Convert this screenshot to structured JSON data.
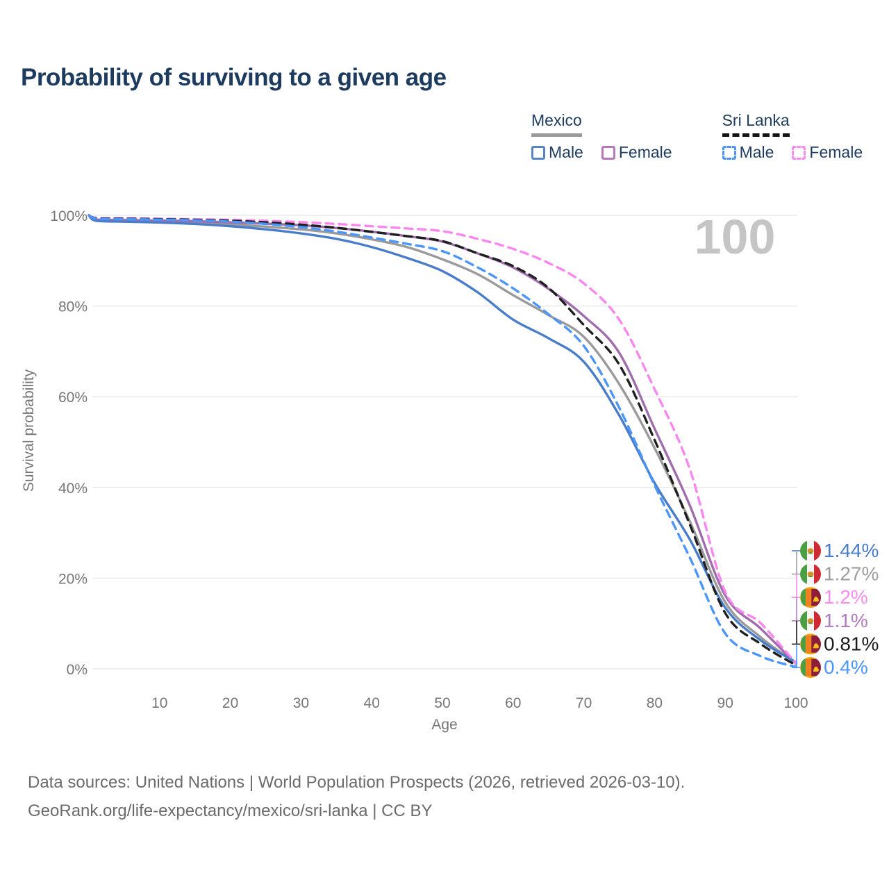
{
  "page": {
    "title": "Probability of surviving to a given age"
  },
  "legend": {
    "groups": [
      {
        "label": "Mexico",
        "underline_style": "solid",
        "underline_color": "#9a9a9a",
        "items": [
          {
            "label": "Male",
            "box_color": "#5585c8",
            "box_style": "solid"
          },
          {
            "label": "Female",
            "box_color": "#b878b8",
            "box_style": "solid"
          }
        ]
      },
      {
        "label": "Sri Lanka",
        "underline_style": "dashed",
        "underline_color": "#141414",
        "items": [
          {
            "label": "Male",
            "box_color": "#4d94fa",
            "box_style": "dashed"
          },
          {
            "label": "Female",
            "box_color": "#fb8bf0",
            "box_style": "dashed"
          }
        ]
      }
    ]
  },
  "watermark_label": "100",
  "chart_data": {
    "type": "line",
    "title": "Probability of surviving to a given age",
    "xlabel": "Age",
    "ylabel": "Survival probability",
    "grid": true,
    "legend_position": "top-right",
    "x_axis": {
      "min": 0,
      "max": 100,
      "ticks": [
        10,
        20,
        30,
        40,
        50,
        60,
        70,
        80,
        90,
        100
      ]
    },
    "y_axis": {
      "min": 0,
      "max": 100,
      "ticks_percent": [
        0,
        20,
        40,
        60,
        80,
        100
      ],
      "tick_labels": [
        "0%",
        "20%",
        "40%",
        "60%",
        "80%",
        "100%"
      ]
    },
    "ages": [
      0,
      1,
      5,
      10,
      15,
      20,
      25,
      30,
      35,
      40,
      45,
      50,
      55,
      60,
      65,
      70,
      75,
      80,
      85,
      90,
      95,
      100
    ],
    "series": [
      {
        "id": "mexico-both",
        "country": "Mexico",
        "sex": "Both",
        "style": "solid",
        "color": "#9a9a9a",
        "values": [
          100,
          98.95,
          98.8,
          98.6,
          98.4,
          98.0,
          97.5,
          96.9,
          96.0,
          94.7,
          93.0,
          90.3,
          87.0,
          82.4,
          78.0,
          73.2,
          62.8,
          48.7,
          32.5,
          14.7,
          7.0,
          1.27
        ],
        "end_label": "1.27%"
      },
      {
        "id": "mexico-female",
        "country": "Mexico",
        "sex": "Female",
        "style": "solid",
        "color": "#a06dac",
        "values": [
          100,
          99.1,
          98.95,
          98.85,
          98.7,
          98.45,
          98.15,
          97.8,
          97.2,
          96.4,
          95.4,
          94.2,
          91.6,
          88.5,
          83.8,
          77.8,
          69.7,
          53.0,
          36.0,
          16.2,
          8.9,
          1.1
        ],
        "end_label": "1.1%"
      },
      {
        "id": "mexico-male",
        "country": "Mexico",
        "sex": "Male",
        "style": "solid",
        "color": "#4a7dc9",
        "values": [
          100,
          98.8,
          98.6,
          98.4,
          98.1,
          97.6,
          96.9,
          96.0,
          94.8,
          93.0,
          90.6,
          87.7,
          83.0,
          77.0,
          72.9,
          67.7,
          55.9,
          41.0,
          28.5,
          13.5,
          6.3,
          1.44
        ],
        "end_label": "1.44%"
      },
      {
        "id": "sri-lanka-female",
        "country": "Sri Lanka",
        "sex": "Female",
        "style": "dashed",
        "color": "#fa87ef",
        "values": [
          100,
          99.45,
          99.35,
          99.25,
          99.15,
          99.0,
          98.8,
          98.5,
          98.1,
          97.6,
          97.1,
          96.5,
          94.8,
          92.6,
          89.5,
          85.0,
          77.0,
          61.7,
          44.0,
          17.0,
          10.1,
          1.2
        ],
        "end_label": "1.2%"
      },
      {
        "id": "sri-lanka-both",
        "country": "Sri Lanka",
        "sex": "Both",
        "style": "dashed",
        "color": "#1f1f1f",
        "values": [
          100,
          99.37,
          99.25,
          99.15,
          99.0,
          98.8,
          98.45,
          97.95,
          97.25,
          96.35,
          95.4,
          94.3,
          91.6,
          88.8,
          84.0,
          75.8,
          67.1,
          50.5,
          31.8,
          12.3,
          5.5,
          0.81
        ],
        "end_label": "0.81%"
      },
      {
        "id": "sri-lanka-male",
        "country": "Sri Lanka",
        "sex": "Male",
        "style": "dashed",
        "color": "#4b96f8",
        "values": [
          100,
          99.3,
          99.15,
          99.05,
          98.9,
          98.6,
          98.1,
          97.4,
          96.4,
          95.1,
          93.7,
          92.1,
          88.5,
          83.9,
          78.2,
          71.2,
          57.6,
          40.5,
          24.5,
          7.8,
          2.8,
          0.4
        ],
        "end_label": "0.4%"
      }
    ],
    "end_labels_order": [
      {
        "series": "mexico-male",
        "flag": "mexico",
        "label": "1.44%",
        "color": "#4a7dc9"
      },
      {
        "series": "mexico-both",
        "flag": "mexico",
        "label": "1.27%",
        "color": "#9e9e9e"
      },
      {
        "series": "sri-lanka-female",
        "flag": "sri-lanka",
        "label": "1.2%",
        "color": "#f98cf0"
      },
      {
        "series": "mexico-female",
        "flag": "mexico",
        "label": "1.1%",
        "color": "#b07cc0"
      },
      {
        "series": "sri-lanka-both",
        "flag": "sri-lanka",
        "label": "0.81%",
        "color": "#1a1a1a"
      },
      {
        "series": "sri-lanka-male",
        "flag": "sri-lanka",
        "label": "0.4%",
        "color": "#4b96f8"
      }
    ]
  },
  "footer": {
    "line1": "Data sources: United Nations | World Population Prospects (2026, retrieved 2026-03-10).",
    "line2": "GeoRank.org/life-expectancy/mexico/sri-lanka | CC BY"
  }
}
